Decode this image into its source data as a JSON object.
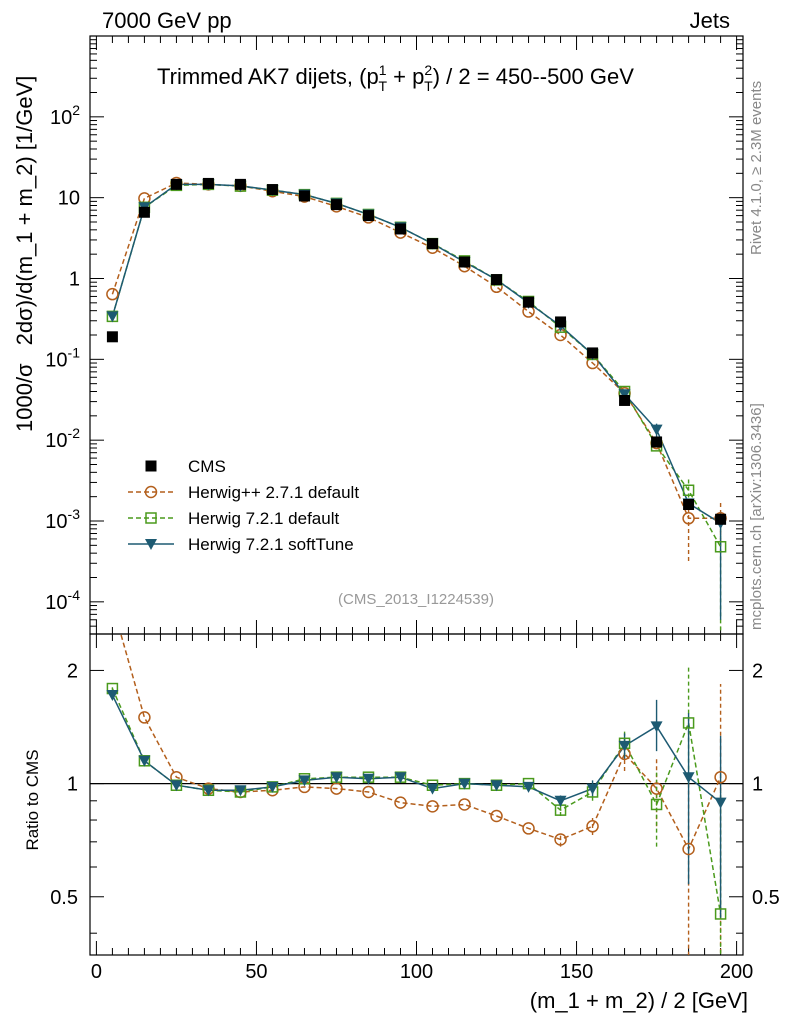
{
  "header": {
    "left": "7000 GeV pp",
    "right": "Jets"
  },
  "side_labels": {
    "rivet": "Rivet 4.1.0, ≥ 2.3M events",
    "mcplots": "mcplots.cern.ch [arXiv:1306.3436]"
  },
  "analysis_id": "(CMS_2013_I1224539)",
  "colors": {
    "cms": "#000000",
    "herwigpp": "#b35f1c",
    "herwig721": "#4a9a1c",
    "softtune": "#1d5a72"
  },
  "chart_data": [
    {
      "type": "line",
      "panel": "main",
      "title_parts": {
        "prefix": "Trimmed AK7 dijets, (p",
        "sup1": "1",
        "sub1": "T",
        "mid": " + p",
        "sup2": "2",
        "sub2": "T",
        "suffix": ") / 2 = 450--500 GeV"
      },
      "ylabel_parts": {
        "prefix": "1000/σ",
        "main": "2dσ)/d(m_1 + m_2) [1/GeV]"
      },
      "yscale": "log",
      "ylim": [
        4e-05,
        1000
      ],
      "xlim": [
        -2,
        202
      ],
      "ytick_labels": [
        {
          "value": 0.0001,
          "base": "10",
          "exp": "-4"
        },
        {
          "value": 0.001,
          "base": "10",
          "exp": "-3"
        },
        {
          "value": 0.01,
          "base": "10",
          "exp": "-2"
        },
        {
          "value": 0.1,
          "base": "10",
          "exp": "-1"
        },
        {
          "value": 1,
          "base": "1",
          "exp": ""
        },
        {
          "value": 10,
          "base": "10",
          "exp": ""
        },
        {
          "value": 100,
          "base": "10",
          "exp": "2"
        }
      ],
      "x": [
        5,
        15,
        25,
        35,
        45,
        55,
        65,
        75,
        85,
        95,
        105,
        115,
        125,
        135,
        145,
        155,
        165,
        175,
        185,
        195
      ],
      "series": [
        {
          "name": "CMS",
          "marker": "square-filled",
          "line": "none",
          "values": [
            0.19,
            6.6,
            14.6,
            15.0,
            14.6,
            12.6,
            10.5,
            8.2,
            6.0,
            4.1,
            2.7,
            1.6,
            0.97,
            0.51,
            0.29,
            0.12,
            0.031,
            0.0095,
            0.0016,
            0.00105
          ]
        },
        {
          "name": "Herwig++ 2.7.1 default",
          "marker": "circle-open",
          "line": "dashed",
          "values": [
            0.64,
            9.8,
            15.2,
            14.6,
            14.0,
            12.0,
            10.3,
            7.8,
            5.7,
            3.7,
            2.4,
            1.42,
            0.79,
            0.39,
            0.2,
            0.09,
            0.038,
            0.0092,
            0.00108,
            0.00108
          ]
        },
        {
          "name": "Herwig 7.2.1 default",
          "marker": "square-open",
          "line": "dashed",
          "values": [
            0.34,
            7.6,
            14.2,
            14.6,
            13.9,
            12.4,
            10.9,
            8.5,
            6.2,
            4.3,
            2.7,
            1.65,
            0.96,
            0.52,
            0.25,
            0.115,
            0.04,
            0.0085,
            0.0024,
            0.00048
          ]
        },
        {
          "name": "Herwig 7.2.1 softTune",
          "marker": "triangle-down-filled",
          "line": "solid",
          "values": [
            0.34,
            7.6,
            14.6,
            14.6,
            14.0,
            12.4,
            10.9,
            8.5,
            6.2,
            4.3,
            2.7,
            1.6,
            0.97,
            0.5,
            0.26,
            0.115,
            0.037,
            0.0135,
            0.00165,
            0.00094
          ]
        }
      ],
      "error_bars": [
        {
          "series": "Herwig 7.2.1 default",
          "x": 185,
          "low": 0.0016,
          "high": 0.0034
        },
        {
          "series": "Herwig 7.2.1 default",
          "x": 195,
          "low": 2e-05,
          "high": 0.0011
        },
        {
          "series": "Herwig++ 2.7.1 default",
          "x": 185,
          "low": 0.00032,
          "high": 0.0018
        },
        {
          "series": "Herwig++ 2.7.1 default",
          "x": 195,
          "low": 0.00055,
          "high": 0.0018
        },
        {
          "series": "Herwig 7.2.1 softTune",
          "x": 195,
          "low": 6e-05,
          "high": 0.0013
        },
        {
          "series": "Herwig 7.2.1 softTune",
          "x": 175,
          "low": 0.0085,
          "high": 0.016
        }
      ],
      "legend": {
        "placement": "bottom-left",
        "entries": [
          "CMS",
          "Herwig++ 2.7.1 default",
          "Herwig 7.2.1 default",
          "Herwig 7.2.1 softTune"
        ]
      }
    },
    {
      "type": "line",
      "panel": "ratio",
      "ylabel": "Ratio to CMS",
      "xlabel": "(m_1 + m_2) / 2 [GeV]",
      "yscale": "log",
      "ylim": [
        0.35,
        2.5
      ],
      "xlim": [
        -2,
        202
      ],
      "ytick_labels": [
        {
          "value": 0.5,
          "label": "0.5"
        },
        {
          "value": 1,
          "label": "1"
        },
        {
          "value": 2,
          "label": "2"
        }
      ],
      "xtick_labels": [
        {
          "value": 0,
          "label": "0"
        },
        {
          "value": 50,
          "label": "50"
        },
        {
          "value": 100,
          "label": "100"
        },
        {
          "value": 150,
          "label": "150"
        },
        {
          "value": 200,
          "label": "200"
        }
      ],
      "x": [
        5,
        15,
        25,
        35,
        45,
        55,
        65,
        75,
        85,
        95,
        105,
        115,
        125,
        135,
        145,
        155,
        165,
        175,
        185,
        195
      ],
      "series": [
        {
          "name": "Herwig++ 2.7.1 default",
          "values": [
            3.0,
            1.5,
            1.04,
            0.97,
            0.95,
            0.96,
            0.98,
            0.97,
            0.95,
            0.89,
            0.87,
            0.88,
            0.82,
            0.76,
            0.71,
            0.77,
            1.2,
            0.97,
            0.67,
            1.04
          ],
          "err_low": [
            0,
            0,
            0,
            0,
            0,
            0,
            0,
            0,
            0,
            0,
            0,
            0,
            0,
            0,
            0.03,
            0.04,
            0.12,
            0.2,
            0.35,
            0.7
          ],
          "err_high": [
            0,
            0,
            0,
            0,
            0,
            0,
            0,
            0,
            0,
            0,
            0,
            0,
            0,
            0,
            0.03,
            0.04,
            0.12,
            0.2,
            0.4,
            0.8
          ]
        },
        {
          "name": "Herwig 7.2.1 default",
          "values": [
            1.79,
            1.15,
            0.99,
            0.96,
            0.95,
            0.98,
            1.03,
            1.04,
            1.04,
            1.04,
            0.99,
            1.0,
            0.99,
            1.0,
            0.85,
            0.95,
            1.28,
            0.88,
            1.45,
            0.45
          ],
          "err_low": [
            0.03,
            0,
            0,
            0,
            0,
            0,
            0,
            0,
            0,
            0,
            0,
            0,
            0,
            0,
            0.03,
            0.05,
            0.1,
            0.2,
            0.45,
            0.2
          ],
          "err_high": [
            0.03,
            0,
            0,
            0,
            0,
            0,
            0,
            0,
            0,
            0,
            0,
            0,
            0,
            0,
            0.03,
            0.05,
            0.1,
            0.2,
            0.6,
            0.5
          ]
        },
        {
          "name": "Herwig 7.2.1 softTune",
          "values": [
            1.72,
            1.15,
            0.99,
            0.96,
            0.96,
            0.98,
            1.02,
            1.04,
            1.03,
            1.04,
            0.97,
            1.0,
            0.99,
            0.98,
            0.9,
            0.97,
            1.26,
            1.42,
            1.04,
            0.89
          ],
          "err_low": [
            0.03,
            0,
            0,
            0,
            0,
            0,
            0,
            0,
            0,
            0,
            0,
            0,
            0,
            0,
            0.03,
            0.05,
            0.1,
            0.2,
            0.5,
            0.45
          ],
          "err_high": [
            0.03,
            0,
            0,
            0,
            0,
            0,
            0,
            0,
            0,
            0,
            0,
            0,
            0,
            0,
            0.03,
            0.05,
            0.1,
            0.25,
            0.5,
            0.45
          ]
        }
      ]
    }
  ]
}
